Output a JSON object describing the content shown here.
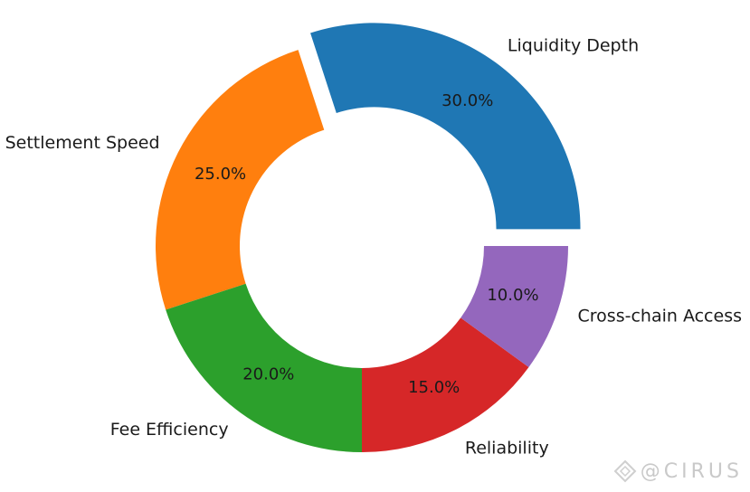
{
  "chart_data": {
    "type": "pie",
    "donut": true,
    "categories": [
      "Liquidity Depth",
      "Settlement Speed",
      "Fee Efficiency",
      "Reliability",
      "Cross-chain Access"
    ],
    "values": [
      30.0,
      25.0,
      20.0,
      15.0,
      10.0
    ],
    "percent_labels": [
      "30.0%",
      "25.0%",
      "20.0%",
      "15.0%",
      "10.0%"
    ],
    "colors": [
      "#1f77b4",
      "#ff7f0e",
      "#2ca02c",
      "#d62728",
      "#9467bd"
    ],
    "exploded": [
      "Liquidity Depth"
    ],
    "title": ""
  },
  "watermark": {
    "text": "@CIRUS",
    "icon": "diamond-logo-icon"
  }
}
